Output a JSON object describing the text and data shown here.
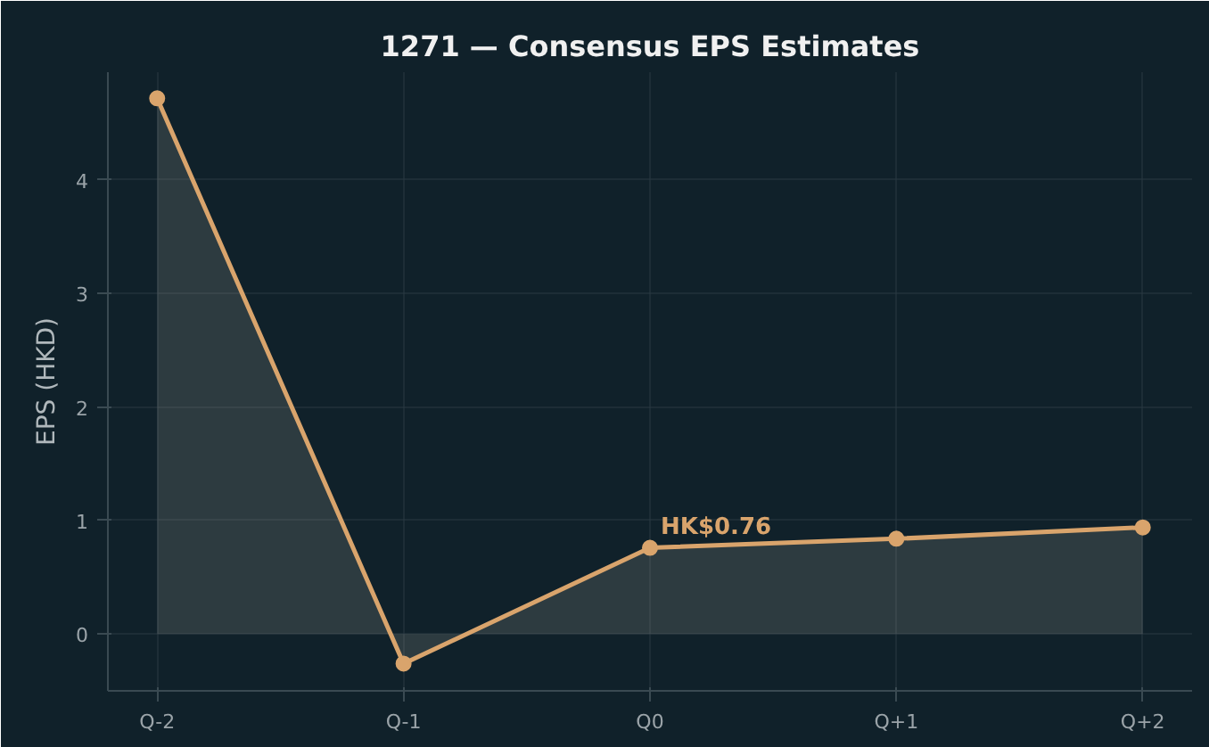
{
  "chart_data": {
    "type": "area",
    "title": "1271 — Consensus EPS Estimates",
    "ylabel": "EPS (HKD)",
    "categories": [
      "Q-2",
      "Q-1",
      "Q0",
      "Q+1",
      "Q+2"
    ],
    "series": [
      {
        "color": "#d9a46c",
        "values": [
          4.72,
          -0.26,
          0.76,
          0.84,
          0.94
        ]
      }
    ],
    "ylim": [
      -0.5,
      4.95
    ],
    "yticks": [
      0,
      1,
      2,
      3,
      4
    ],
    "grid": true,
    "marker": "circle",
    "line_style": "solid",
    "annotations": [
      {
        "text": "HK$0.76",
        "x": "Q0",
        "y": 0.76
      }
    ]
  }
}
